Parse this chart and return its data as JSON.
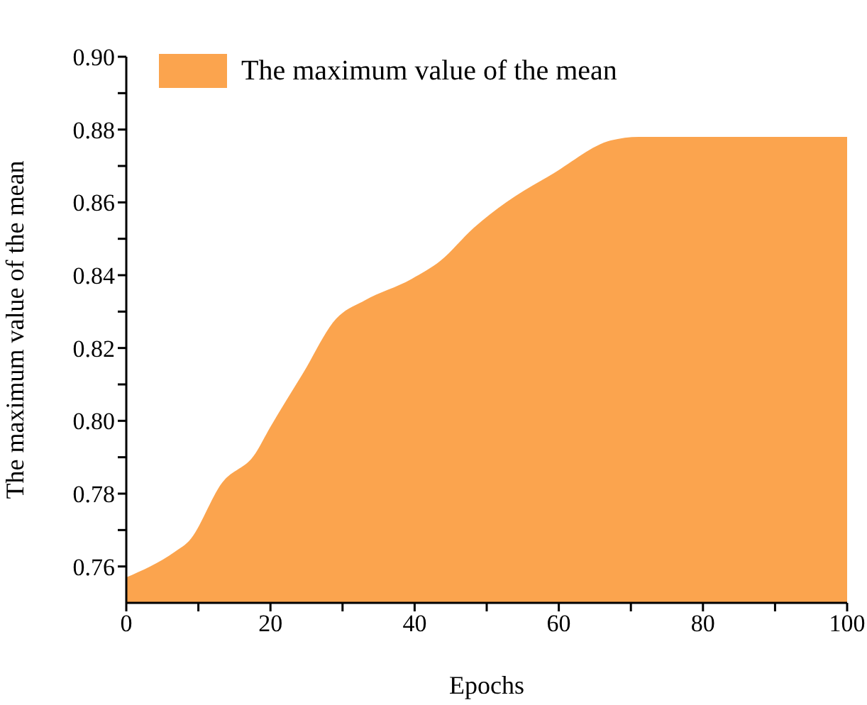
{
  "chart_data": {
    "type": "area",
    "xlabel": "Epochs",
    "ylabel": "The maximum value of the mean",
    "x": [
      0,
      6.7,
      8.7,
      13.3,
      17.9,
      19.9,
      24.5,
      29.1,
      33,
      39.6,
      43.6,
      48.2,
      52.7,
      59.3,
      67.2,
      71.1,
      80.4,
      100
    ],
    "series": [
      {
        "name": "The maximum value of the mean",
        "color": "#fba44e",
        "values": [
          0.757,
          0.764,
          0.767,
          0.783,
          0.791,
          0.798,
          0.813,
          0.828,
          0.833,
          0.839,
          0.844,
          0.853,
          0.86,
          0.868,
          0.877,
          0.878,
          0.878,
          0.878
        ]
      }
    ],
    "xlim": [
      0,
      100
    ],
    "xticks": [
      0,
      {
        "value": 10,
        "label": null
      },
      20,
      {
        "value": 30,
        "label": null
      },
      40,
      {
        "value": 50,
        "label": null
      },
      60,
      {
        "value": 70,
        "label": null
      },
      80,
      {
        "value": 90,
        "label": null
      },
      100
    ],
    "ylim": [
      0.75,
      0.9
    ],
    "yticks": [
      0.76,
      {
        "value": 0.77,
        "label": null
      },
      0.78,
      {
        "value": 0.79,
        "label": null
      },
      {
        "value": 0.8,
        "label": "0.80"
      },
      {
        "value": 0.81,
        "label": null
      },
      0.82,
      {
        "value": 0.83,
        "label": null
      },
      0.84,
      {
        "value": 0.85,
        "label": null
      },
      0.86,
      {
        "value": 0.87,
        "label": null
      },
      0.88,
      {
        "value": 0.89,
        "label": null
      },
      {
        "value": 0.9,
        "label": "0.90"
      }
    ],
    "legend": "top left",
    "grid": false
  }
}
